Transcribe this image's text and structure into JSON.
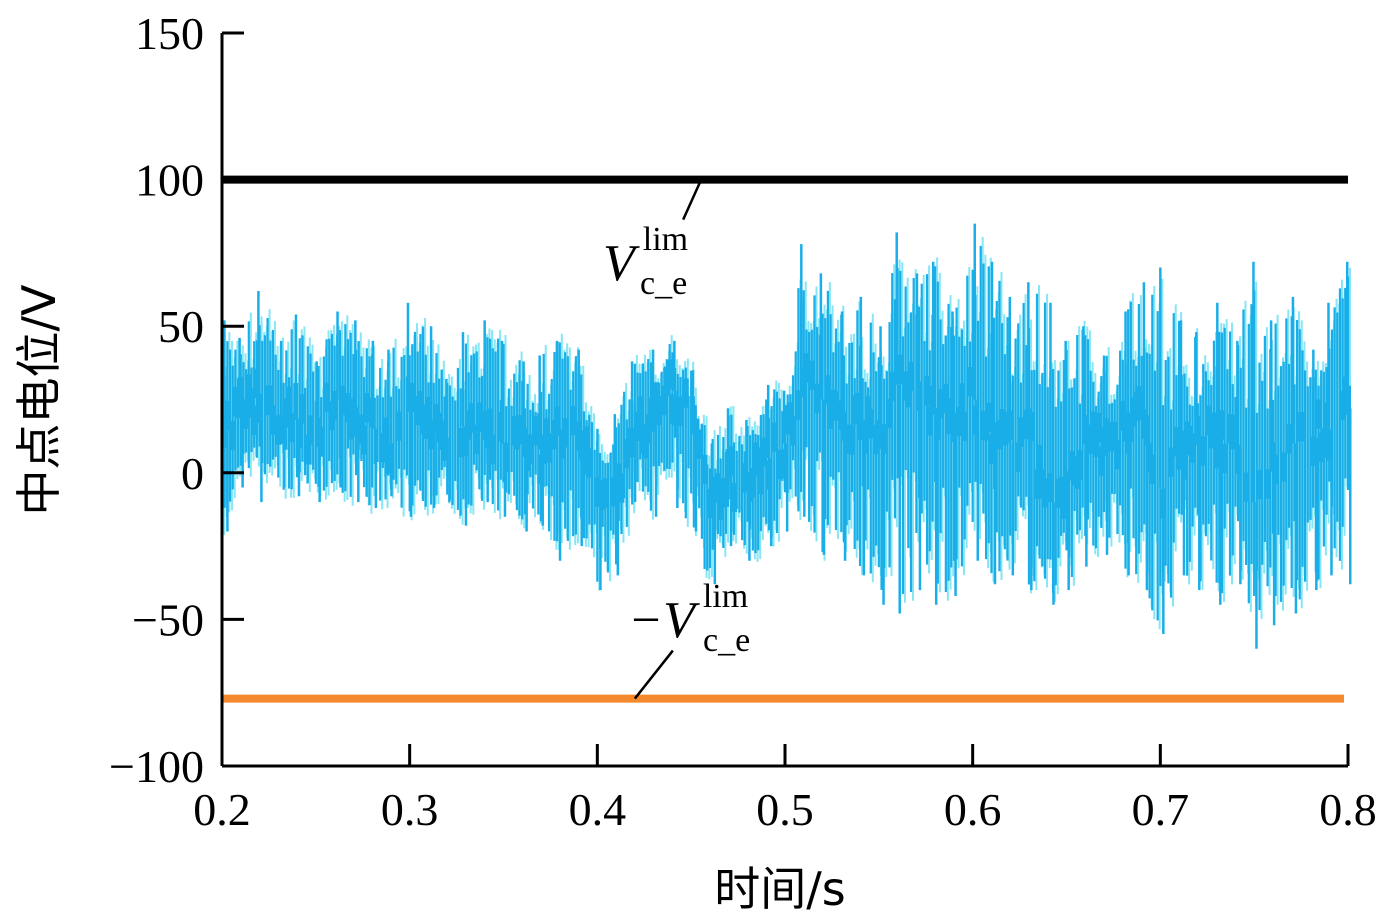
{
  "chart_data": {
    "type": "line",
    "title": "",
    "xlabel": "时间/s",
    "ylabel": "中点电位/V",
    "xlim": [
      0.2,
      0.8
    ],
    "ylim": [
      -100,
      150
    ],
    "xticks": [
      "0.2",
      "0.3",
      "0.4",
      "0.5",
      "0.6",
      "0.7",
      "0.8"
    ],
    "yticks": [
      "150",
      "100",
      "50",
      "0",
      "−50",
      "−100"
    ],
    "grid": false,
    "legend": "none",
    "colors": {
      "signal": "#1aaee8",
      "signal_light": "#86e6f5",
      "upper_limit": "#000000",
      "lower_limit": "#f5892d"
    },
    "annotations": {
      "upper": {
        "main": "V",
        "sub": "c_e",
        "sup": "lim",
        "target": [
          0.45,
          100
        ]
      },
      "lower": {
        "main": "−V",
        "sub": "c_e",
        "sup": "lim",
        "target": [
          0.42,
          -77
        ]
      }
    },
    "series": [
      {
        "role": "upper-limit",
        "x": [
          0.2,
          0.8
        ],
        "y": [
          100,
          100
        ]
      },
      {
        "role": "lower-limit",
        "x": [
          0.2,
          0.8
        ],
        "y": [
          -77,
          -77
        ]
      },
      {
        "role": "neutral-point-potential",
        "x": [
          0.2,
          0.21,
          0.22,
          0.23,
          0.24,
          0.25,
          0.26,
          0.27,
          0.28,
          0.29,
          0.3,
          0.31,
          0.32,
          0.33,
          0.34,
          0.35,
          0.36,
          0.37,
          0.38,
          0.39,
          0.4,
          0.41,
          0.42,
          0.43,
          0.44,
          0.45,
          0.46,
          0.47,
          0.48,
          0.49,
          0.5,
          0.51,
          0.52,
          0.53,
          0.54,
          0.55,
          0.56,
          0.57,
          0.58,
          0.59,
          0.6,
          0.61,
          0.62,
          0.63,
          0.64,
          0.65,
          0.66,
          0.67,
          0.68,
          0.69,
          0.7,
          0.71,
          0.72,
          0.73,
          0.74,
          0.75,
          0.76,
          0.77,
          0.78,
          0.79,
          0.8
        ],
        "y_max": [
          52,
          46,
          62,
          45,
          54,
          38,
          55,
          52,
          45,
          42,
          58,
          50,
          32,
          48,
          52,
          45,
          38,
          40,
          45,
          42,
          15,
          20,
          38,
          42,
          45,
          35,
          10,
          22,
          18,
          30,
          28,
          78,
          68,
          55,
          60,
          50,
          82,
          68,
          72,
          55,
          85,
          72,
          60,
          65,
          58,
          45,
          50,
          40,
          55,
          65,
          70,
          52,
          48,
          58,
          45,
          72,
          52,
          60,
          42,
          58,
          72
        ],
        "y_min": [
          -20,
          -5,
          -10,
          -5,
          -8,
          -10,
          -5,
          -10,
          -12,
          -8,
          -15,
          -12,
          -10,
          -18,
          -10,
          -15,
          -20,
          -18,
          -30,
          -25,
          -40,
          -35,
          -10,
          -15,
          -12,
          -20,
          -38,
          -25,
          -30,
          -25,
          -20,
          -15,
          -28,
          -30,
          -35,
          -45,
          -48,
          -40,
          -45,
          -42,
          -30,
          -38,
          -35,
          -40,
          -45,
          -40,
          -32,
          -28,
          -35,
          -40,
          -55,
          -35,
          -40,
          -45,
          -38,
          -60,
          -52,
          -48,
          -40,
          -35,
          -38
        ],
        "y_mid": [
          15,
          22,
          25,
          20,
          18,
          12,
          25,
          20,
          15,
          10,
          22,
          18,
          12,
          16,
          14,
          10,
          12,
          8,
          15,
          12,
          -5,
          -8,
          12,
          20,
          28,
          18,
          -10,
          0,
          -5,
          5,
          10,
          35,
          25,
          15,
          18,
          10,
          30,
          25,
          22,
          20,
          25,
          15,
          10,
          12,
          -10,
          -5,
          10,
          8,
          15,
          20,
          -5,
          5,
          10,
          12,
          8,
          -10,
          5,
          10,
          12,
          15,
          22
        ]
      }
    ]
  }
}
